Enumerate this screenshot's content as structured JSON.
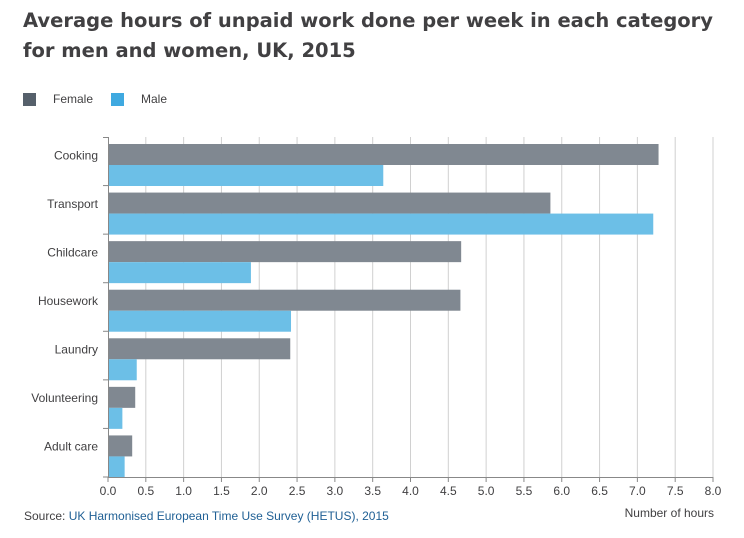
{
  "title_line1": "Average hours of unpaid work done per week in each category",
  "title_line2": "for men and women, UK, 2015",
  "source": {
    "prefix": "Source: ",
    "link_text": "UK Harmonised European Time Use Survey (HETUS), 2015"
  },
  "colors": {
    "female": "#808891",
    "male": "#6cbfe7",
    "grid": "#d0d0d0",
    "axis": "#888888",
    "text": "#414042"
  },
  "chart_data": {
    "type": "bar",
    "orientation": "horizontal",
    "title": "Average hours of unpaid work done per week in each category for men and women, UK, 2015",
    "xlabel": "Number of hours",
    "ylabel": "",
    "xlim": [
      0,
      8
    ],
    "xticks": [
      "0.0",
      "0.5",
      "1.0",
      "1.5",
      "2.0",
      "2.5",
      "3.0",
      "3.5",
      "4.0",
      "4.5",
      "5.0",
      "5.5",
      "6.0",
      "6.5",
      "7.0",
      "7.5",
      "8.0"
    ],
    "grid": true,
    "legend_position": "top-left",
    "categories": [
      "Cooking",
      "Transport",
      "Childcare",
      "Housework",
      "Laundry",
      "Volunteering",
      "Adult care"
    ],
    "series": [
      {
        "name": "Female",
        "color": "#808891",
        "values": [
          7.28,
          5.85,
          4.67,
          4.66,
          2.41,
          0.36,
          0.32
        ]
      },
      {
        "name": "Male",
        "color": "#6cbfe7",
        "values": [
          3.64,
          7.21,
          1.89,
          2.42,
          0.38,
          0.19,
          0.22
        ]
      }
    ]
  }
}
